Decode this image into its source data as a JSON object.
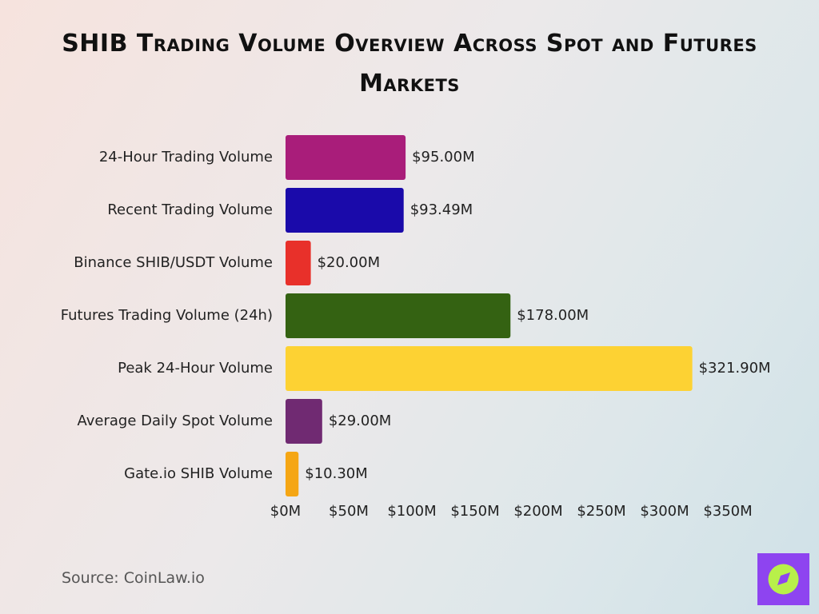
{
  "chart_data": {
    "type": "barh",
    "title": "SHIB Trading Volume Overview Across Spot and Futures Markets",
    "categories": [
      "24-Hour Trading Volume",
      "Recent Trading Volume",
      "Binance SHIB/USDT Volume",
      "Futures Trading Volume (24h)",
      "Peak 24-Hour Volume",
      "Average Daily Spot Volume",
      "Gate.io SHIB Volume"
    ],
    "values": [
      95.0,
      93.49,
      20.0,
      178.0,
      321.9,
      29.0,
      10.3
    ],
    "value_labels": [
      "$95.00M",
      "$93.49M",
      "$20.00M",
      "$178.00M",
      "$321.90M",
      "$29.00M",
      "$10.30M"
    ],
    "colors": [
      "#a91d7a",
      "#1a0aaa",
      "#e8302a",
      "#346212",
      "#fdd233",
      "#702a72",
      "#f5a614"
    ],
    "xlim": [
      0,
      350
    ],
    "xticks": [
      {
        "value": 0,
        "label": "$0M"
      },
      {
        "value": 50,
        "label": "$50M"
      },
      {
        "value": 100,
        "label": "$100M"
      },
      {
        "value": 150,
        "label": "$150M"
      },
      {
        "value": 200,
        "label": "$200M"
      },
      {
        "value": 250,
        "label": "$250M"
      },
      {
        "value": 300,
        "label": "$300M"
      },
      {
        "value": 350,
        "label": "$350M"
      }
    ],
    "grid": false,
    "source": "Source: CoinLaw.io"
  }
}
